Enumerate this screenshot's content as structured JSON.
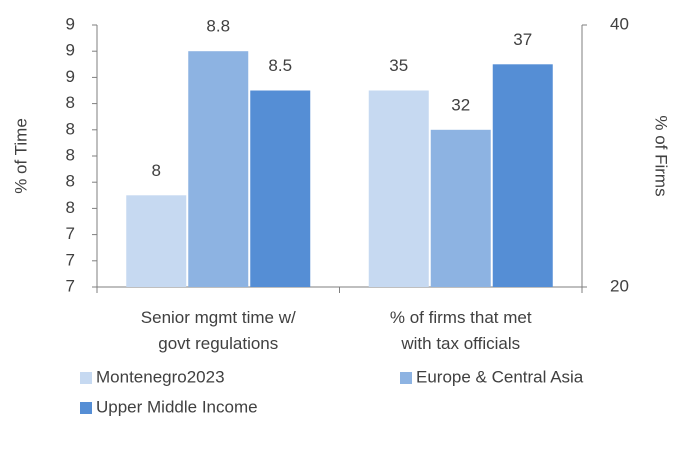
{
  "chart_data": {
    "type": "bar",
    "categories": [
      "Senior mgmt time w/ govt regulations",
      "% of firms that met with tax officials"
    ],
    "category_axes": [
      "y",
      "y2"
    ],
    "series": [
      {
        "name": "Montenegro2023",
        "color": "#c6d9f1",
        "values": [
          7.7,
          35
        ],
        "value_labels": [
          "8",
          "35"
        ]
      },
      {
        "name": "Europe & Central Asia",
        "color": "#8db3e2",
        "values": [
          8.8,
          32
        ],
        "value_labels": [
          "8.8",
          "32"
        ]
      },
      {
        "name": "Upper Middle Income",
        "color": "#558ed5",
        "values": [
          8.5,
          37
        ],
        "value_labels": [
          "8.5",
          "37"
        ]
      }
    ],
    "ylabel": "% of Time",
    "y2label": "% of Firms",
    "ylim": [
      7,
      9
    ],
    "yticks": [
      {
        "value": 7.0,
        "label": "7"
      },
      {
        "value": 7.2,
        "label": "7"
      },
      {
        "value": 7.4,
        "label": "7"
      },
      {
        "value": 7.6,
        "label": "8"
      },
      {
        "value": 7.8,
        "label": "8"
      },
      {
        "value": 8.0,
        "label": "8"
      },
      {
        "value": 8.2,
        "label": "8"
      },
      {
        "value": 8.4,
        "label": "8"
      },
      {
        "value": 8.6,
        "label": "9"
      },
      {
        "value": 8.8,
        "label": "9"
      },
      {
        "value": 9.0,
        "label": "9"
      }
    ],
    "y2lim": [
      20,
      40
    ],
    "y2ticks": [
      20,
      40
    ],
    "grid": false,
    "legend": "bottom"
  }
}
